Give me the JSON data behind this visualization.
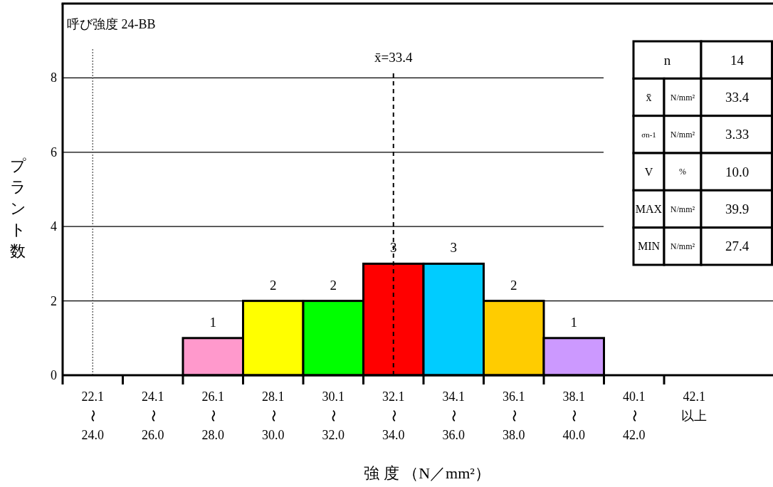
{
  "chart_data": {
    "type": "bar",
    "title": "呼び強度 24-BB",
    "xlabel": "強 度 （N／mm²）",
    "ylabel": "プラント数",
    "categories": [
      "22.1\n〜\n24.0",
      "24.1\n〜\n26.0",
      "26.1\n〜\n28.0",
      "28.1\n〜\n30.0",
      "30.1\n〜\n32.0",
      "32.1\n〜\n34.0",
      "34.1\n〜\n36.0",
      "36.1\n〜\n38.0",
      "38.1\n〜\n40.0",
      "40.1\n〜\n42.0",
      "42.1\n以上"
    ],
    "values": [
      0,
      0,
      1,
      2,
      2,
      3,
      3,
      2,
      1,
      0,
      0
    ],
    "colors": [
      null,
      null,
      "#ff99cc",
      "#ffff00",
      "#00ff00",
      "#ff0000",
      "#00ccff",
      "#ffcc00",
      "#cc99ff",
      null,
      null
    ],
    "value_labels": [
      null,
      null,
      "1",
      "2",
      "2",
      "3",
      "3",
      "2",
      "1",
      null,
      null
    ],
    "ylim": [
      0,
      10
    ],
    "yticks": [
      0,
      2,
      4,
      6,
      8
    ],
    "grid": "y",
    "ref_lines": [
      {
        "axis": "x",
        "value": "32.1\n〜\n34.0",
        "label": "x̄=33.4",
        "line_style": "dashed"
      },
      {
        "axis": "x",
        "value": "22.1\n〜\n24.0",
        "line_style": "dotted"
      }
    ],
    "annotations": [
      "n",
      "14",
      "x̄",
      "N/mm²",
      "33.4",
      "σn-1",
      "N/mm²",
      "3.33",
      "V",
      "%",
      "10.0",
      "MAX",
      "N/mm²",
      "39.9",
      "MIN",
      "N/mm²",
      "27.4"
    ]
  }
}
